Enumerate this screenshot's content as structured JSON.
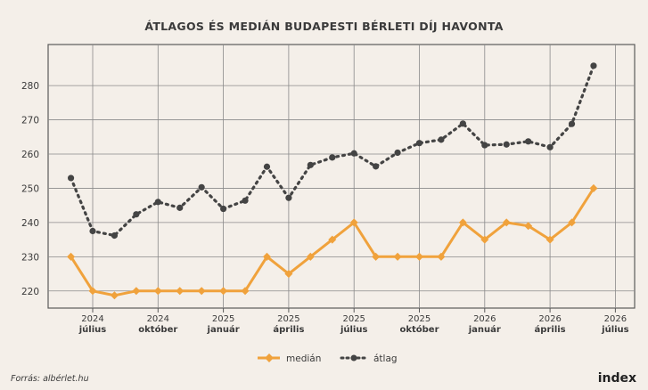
{
  "chart_data": {
    "type": "line",
    "title": "ÁTLAGOS ÉS MEDIÁN BUDAPESTI BÉRLETI DÍJ HAVONTA",
    "xlabel": "",
    "ylabel": "",
    "ylim": [
      215,
      292
    ],
    "yticks": [
      "220",
      "230",
      "240",
      "250",
      "260",
      "270",
      "280"
    ],
    "x_ticks": [
      {
        "year": "2024",
        "month": "július"
      },
      {
        "year": "2024",
        "month": "október"
      },
      {
        "year": "2025",
        "month": "január"
      },
      {
        "year": "2025",
        "month": "április"
      },
      {
        "year": "2025",
        "month": "július"
      },
      {
        "year": "2025",
        "month": "október"
      },
      {
        "year": "2026",
        "month": "január"
      },
      {
        "year": "2026",
        "month": "április"
      },
      {
        "year": "2026",
        "month": "július"
      }
    ],
    "x_start": "2024-06",
    "grid": true,
    "legend_position": "bottom-center",
    "series": [
      {
        "name": "medián",
        "color": "#f0a23c",
        "style": "solid",
        "x": [
          "2024-06",
          "2024-07",
          "2024-08",
          "2024-09",
          "2024-10",
          "2024-11",
          "2024-12",
          "2025-01",
          "2025-02",
          "2025-03",
          "2025-04",
          "2025-05",
          "2025-06",
          "2025-07",
          "2025-08",
          "2025-09",
          "2025-10",
          "2025-11",
          "2025-12",
          "2026-01",
          "2026-02",
          "2026-03",
          "2026-04",
          "2026-05",
          "2026-06"
        ],
        "values": [
          230,
          220,
          218.7,
          220,
          220,
          220,
          220,
          220,
          220,
          230,
          225,
          230,
          235,
          240,
          230,
          230,
          230,
          230,
          240,
          235,
          240,
          239,
          235,
          240,
          250
        ]
      },
      {
        "name": "átlag",
        "color": "#444444",
        "style": "dotted",
        "x": [
          "2024-06",
          "2024-07",
          "2024-08",
          "2024-09",
          "2024-10",
          "2024-11",
          "2024-12",
          "2025-01",
          "2025-02",
          "2025-03",
          "2025-04",
          "2025-05",
          "2025-06",
          "2025-07",
          "2025-08",
          "2025-09",
          "2025-10",
          "2025-11",
          "2025-12",
          "2026-01",
          "2026-02",
          "2026-03",
          "2026-04",
          "2026-05",
          "2026-06"
        ],
        "values": [
          253,
          237.5,
          236.2,
          242.4,
          246,
          244.3,
          250.3,
          244,
          246.4,
          256.3,
          247.2,
          256.8,
          259,
          260.2,
          256.4,
          260.4,
          263.2,
          264.2,
          268.9,
          262.6,
          262.8,
          263.7,
          262,
          268.8,
          285.8
        ]
      }
    ]
  },
  "source": "Forrás: albérlet.hu",
  "logo": "index"
}
